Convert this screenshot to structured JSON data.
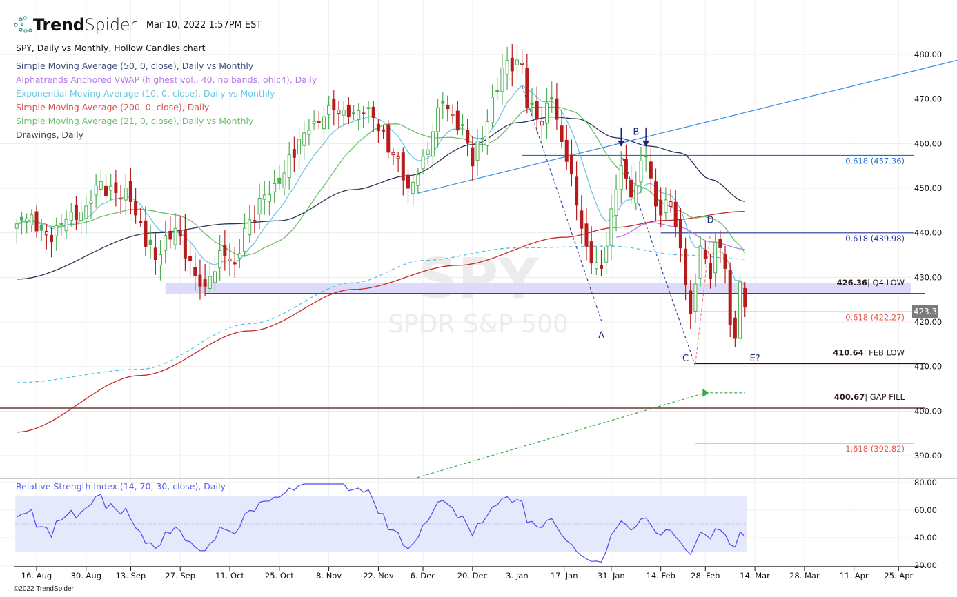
{
  "header": {
    "brand_bold": "Trend",
    "brand_light": "Spider",
    "timestamp": "Mar 10, 2022 1:57PM EST"
  },
  "legend": {
    "title": "SPY, Daily vs Monthly, Hollow Candles chart",
    "items": [
      {
        "label": "Simple Moving Average (50, 0, close), Daily vs Monthly",
        "color": "#3d4f7c"
      },
      {
        "label": "Alphatrends Anchored VWAP (highest vol., 40, no bands, ohlc4), Daily",
        "color": "#b57ae8"
      },
      {
        "label": "Exponential Moving Average (10, 0, close), Daily vs Monthly",
        "color": "#6cc8e0"
      },
      {
        "label": "Simple Moving Average (200, 0, close), Daily",
        "color": "#d9534f"
      },
      {
        "label": "Simple Moving Average (21, 0, close), Daily vs Monthly",
        "color": "#6cbf6a"
      },
      {
        "label": "Drawings, Daily",
        "color": "#444444"
      }
    ]
  },
  "watermark": {
    "symbol": "SPY",
    "name": "SPDR S&P 500"
  },
  "last_price_label": "423.3",
  "footer": "©2022 TrendSpider",
  "chart_data": {
    "type": "candlestick",
    "symbol": "SPY",
    "price_axis": {
      "min": 387,
      "max": 482,
      "ticks": [
        "480.00",
        "470.00",
        "460.00",
        "450.00",
        "440.00",
        "430.00",
        "420.00",
        "410.00",
        "400.00",
        "390.00"
      ],
      "tick_values": [
        480,
        470,
        460,
        450,
        440,
        430,
        420,
        410,
        400,
        390
      ]
    },
    "x_ticks": [
      {
        "label": "16. Aug",
        "date": "2021-08-16"
      },
      {
        "label": "30. Aug",
        "date": "2021-08-30"
      },
      {
        "label": "13. Sep",
        "date": "2021-09-13"
      },
      {
        "label": "27. Sep",
        "date": "2021-09-27"
      },
      {
        "label": "11. Oct",
        "date": "2021-10-11"
      },
      {
        "label": "25. Oct",
        "date": "2021-10-25"
      },
      {
        "label": "8. Nov",
        "date": "2021-11-08"
      },
      {
        "label": "22. Nov",
        "date": "2021-11-22"
      },
      {
        "label": "6. Dec",
        "date": "2021-12-06"
      },
      {
        "label": "20. Dec",
        "date": "2021-12-20"
      },
      {
        "label": "3. Jan",
        "date": "2022-01-03"
      },
      {
        "label": "17. Jan",
        "date": "2022-01-17"
      },
      {
        "label": "31. Jan",
        "date": "2022-01-31"
      },
      {
        "label": "14. Feb",
        "date": "2022-02-14"
      },
      {
        "label": "28. Feb",
        "date": "2022-02-28"
      },
      {
        "label": "14. Mar",
        "date": "2022-03-14"
      },
      {
        "label": "28. Mar",
        "date": "2022-03-28"
      },
      {
        "label": "11. Apr",
        "date": "2022-04-11"
      },
      {
        "label": "25. Apr",
        "date": "2022-04-25"
      }
    ],
    "close_path": [
      [
        "2021-08-10",
        442
      ],
      [
        "2021-08-13",
        444
      ],
      [
        "2021-08-19",
        438
      ],
      [
        "2021-08-24",
        443
      ],
      [
        "2021-08-30",
        446
      ],
      [
        "2021-09-02",
        451.5
      ],
      [
        "2021-09-08",
        449
      ],
      [
        "2021-09-13",
        447
      ],
      [
        "2021-09-20",
        434
      ],
      [
        "2021-09-24",
        441
      ],
      [
        "2021-09-30",
        430.4
      ],
      [
        "2021-10-04",
        428
      ],
      [
        "2021-10-07",
        436
      ],
      [
        "2021-10-12",
        433
      ],
      [
        "2021-10-14",
        441
      ],
      [
        "2021-10-22",
        451
      ],
      [
        "2021-11-02",
        463
      ],
      [
        "2021-11-08",
        468.5
      ],
      [
        "2021-11-12",
        466
      ],
      [
        "2021-11-18",
        468
      ],
      [
        "2021-11-26",
        458
      ],
      [
        "2021-12-01",
        450
      ],
      [
        "2021-12-03",
        453
      ],
      [
        "2021-12-10",
        469
      ],
      [
        "2021-12-16",
        464
      ],
      [
        "2021-12-20",
        455
      ],
      [
        "2021-12-29",
        477
      ],
      [
        "2022-01-04",
        478
      ],
      [
        "2022-01-05",
        468
      ],
      [
        "2022-01-10",
        465
      ],
      [
        "2022-01-12",
        470
      ],
      [
        "2022-01-18",
        456
      ],
      [
        "2022-01-21",
        441
      ],
      [
        "2022-01-24",
        437
      ],
      [
        "2022-01-27",
        432
      ],
      [
        "2022-02-02",
        455
      ],
      [
        "2022-02-04",
        448
      ],
      [
        "2022-02-09",
        457
      ],
      [
        "2022-02-11",
        446
      ],
      [
        "2022-02-16",
        447
      ],
      [
        "2022-02-18",
        436.6
      ],
      [
        "2022-02-23",
        421.8
      ],
      [
        "2022-02-24",
        428.5
      ],
      [
        "2022-02-25",
        437
      ],
      [
        "2022-03-01",
        429.8
      ],
      [
        "2022-03-02",
        437.9
      ],
      [
        "2022-03-04",
        432
      ],
      [
        "2022-03-07",
        419.4
      ],
      [
        "2022-03-08",
        416.3
      ],
      [
        "2022-03-09",
        429
      ],
      [
        "2022-03-10",
        423.3
      ]
    ],
    "series": [
      {
        "name": "SMA 50",
        "color": "#2a3558",
        "points": [
          [
            "2021-08-10",
            429.6
          ],
          [
            "2021-09-20",
            440
          ],
          [
            "2021-10-11",
            442
          ],
          [
            "2021-10-25",
            442.7
          ],
          [
            "2021-11-15",
            449.7
          ],
          [
            "2021-12-01",
            452.8
          ],
          [
            "2021-12-20",
            459.8
          ],
          [
            "2022-01-03",
            464.7
          ],
          [
            "2022-01-12",
            466
          ],
          [
            "2022-01-20",
            465.6
          ],
          [
            "2022-02-01",
            461.3
          ],
          [
            "2022-02-10",
            459.4
          ],
          [
            "2022-02-18",
            457.9
          ],
          [
            "2022-03-01",
            452
          ],
          [
            "2022-03-10",
            447
          ]
        ]
      },
      {
        "name": "SMA 200",
        "color": "#c62828",
        "points": [
          [
            "2021-08-10",
            395.3
          ],
          [
            "2021-09-15",
            408
          ],
          [
            "2021-10-15",
            418
          ],
          [
            "2021-11-15",
            427.3
          ],
          [
            "2021-12-15",
            432.7
          ],
          [
            "2022-01-15",
            439
          ],
          [
            "2022-02-01",
            441.2
          ],
          [
            "2022-02-15",
            442.8
          ],
          [
            "2022-03-10",
            444.8
          ]
        ]
      },
      {
        "name": "Anchored VWAP (long)",
        "color": "#5bc0de",
        "dashed": true,
        "points": [
          [
            "2021-08-10",
            406.4
          ],
          [
            "2021-09-15",
            409.4
          ],
          [
            "2021-10-15",
            419.6
          ],
          [
            "2021-11-15",
            428.8
          ],
          [
            "2021-12-06",
            433.8
          ],
          [
            "2022-01-01",
            436.6
          ],
          [
            "2022-01-31",
            437
          ],
          [
            "2022-02-20",
            435
          ],
          [
            "2022-03-10",
            434.1
          ]
        ]
      },
      {
        "name": "Anchored VWAP",
        "color": "#b57ae8",
        "points": [
          [
            "2022-02-01",
            439
          ],
          [
            "2022-02-10",
            442.3
          ],
          [
            "2022-02-18",
            441.2
          ],
          [
            "2022-03-01",
            438
          ],
          [
            "2022-03-10",
            436.3
          ]
        ]
      }
    ],
    "levels": [
      {
        "price": 457.36,
        "from": "2022-01-04",
        "color": "#1e6fd9",
        "label": "0.618 (457.36)",
        "bold": ""
      },
      {
        "price": 439.98,
        "from": "2022-02-14",
        "color": "#2a3a9a",
        "label": "0.618 (439.98)",
        "bold": ""
      },
      {
        "price": 426.36,
        "from": "2021-10-04",
        "color": "#2b0f0f",
        "label": "| Q4 LOW",
        "bold": "426.36"
      },
      {
        "price": 422.27,
        "from": "2022-02-24",
        "color": "#e5534b",
        "label": "0.618 (422.27)",
        "bold": ""
      },
      {
        "price": 410.64,
        "from": "2022-02-24",
        "color": "#2b0f0f",
        "label": "| FEB LOW",
        "bold": "410.64"
      },
      {
        "price": 400.67,
        "from": "2021-08-01",
        "color": "#4a1010",
        "label": "| GAP FILL",
        "bold": "400.67"
      },
      {
        "price": 392.82,
        "from": "2022-02-24",
        "color": "#e5534b",
        "label": "1.618 (392.82)",
        "bold": ""
      }
    ],
    "zone": {
      "low": 426.36,
      "high": 428.7,
      "from": "2021-09-22",
      "color": "#dcdcfa"
    },
    "trendlines": [
      {
        "color": "#3a8ee6",
        "points": [
          [
            "2021-12-03",
            448.9
          ],
          [
            "2022-02-03",
            460.4
          ]
        ],
        "extend": true
      },
      {
        "color": "#3a45a0",
        "dashed": true,
        "points": [
          [
            "2022-01-04",
            472.9
          ],
          [
            "2022-01-27",
            420.3
          ]
        ]
      },
      {
        "color": "#3a45a0",
        "dashed": true,
        "points": [
          [
            "2022-02-02",
            457.8
          ],
          [
            "2022-02-24",
            410.1
          ]
        ]
      },
      {
        "color": "#f08080",
        "dashed": true,
        "points": [
          [
            "2022-02-24",
            410.6
          ],
          [
            "2022-03-01",
            439.9
          ]
        ]
      },
      {
        "color": "#3aa845",
        "dashed": true,
        "points": [
          [
            "2021-12-01",
            384.5
          ],
          [
            "2022-02-28",
            404.1
          ]
        ]
      },
      {
        "color": "#3aa845",
        "dashed": true,
        "points": [
          [
            "2022-02-28",
            404.1
          ],
          [
            "2022-03-10",
            404.1
          ]
        ]
      }
    ],
    "wave_labels": [
      {
        "text": "A",
        "date": "2022-01-27",
        "price": 416.4
      },
      {
        "text": "B",
        "date": "2022-02-07",
        "price": 462
      },
      {
        "text": "C",
        "date": "2022-02-22",
        "price": 411.2
      },
      {
        "text": "D",
        "date": "2022-03-01",
        "price": 442.2
      },
      {
        "text": "E?",
        "date": "2022-03-14",
        "price": 411.2
      }
    ],
    "arrows": [
      {
        "date": "2022-02-02",
        "price": 459.3
      },
      {
        "date": "2022-02-09",
        "price": 459.3
      }
    ],
    "rsi": {
      "title": "Relative Strength Index (14, 70, 30, close), Daily",
      "ticks": [
        "80.00",
        "60.00",
        "40.00",
        "20.00"
      ],
      "tick_values": [
        80,
        60,
        40,
        20
      ],
      "overbought": 70,
      "oversold": 30,
      "color": "#4a4af0"
    }
  }
}
